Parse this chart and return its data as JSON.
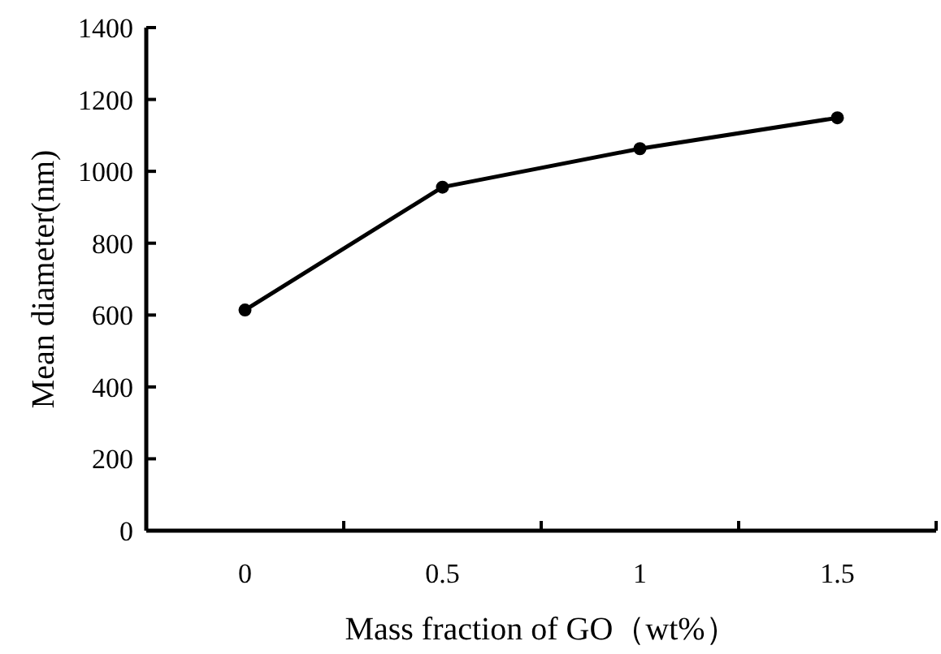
{
  "chart_data": {
    "type": "line",
    "xlabel": "Mass fraction of GO（wt%）",
    "ylabel": "Mean diameter(nm)",
    "categories": [
      "0",
      "0.5",
      "1",
      "1.5"
    ],
    "series": [
      {
        "color": "#000000",
        "values": [
          614,
          956,
          1063,
          1149
        ]
      }
    ],
    "ylim": [
      0,
      1400
    ],
    "yticks": [
      0,
      200,
      400,
      600,
      800,
      1000,
      1200,
      1400
    ],
    "marker": "circle",
    "line_style": "solid",
    "grid": false
  }
}
